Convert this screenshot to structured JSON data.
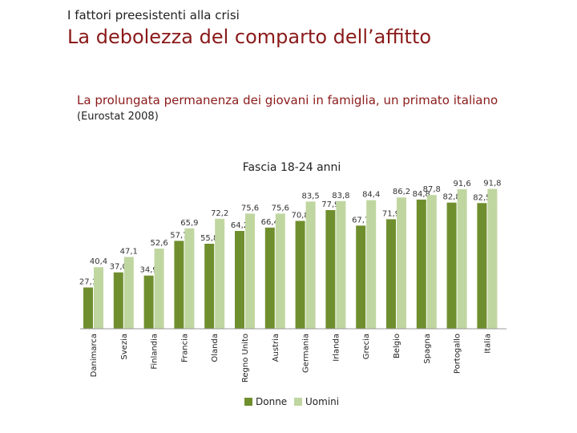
{
  "header": {
    "kicker": "I fattori preesistenti alla crisi",
    "title": "La debolezza del comparto dell’affitto",
    "subtitle": "La prolungata permanenza dei giovani in famiglia, un primato italiano",
    "source": "(Eurostat 2008)"
  },
  "chart_data": {
    "type": "bar",
    "title": "Fascia 18-24 anni",
    "categories": [
      "Danimarca",
      "Svezia",
      "Finlandia",
      "Francia",
      "Olanda",
      "Regno Unito",
      "Austria",
      "Germania",
      "Irlanda",
      "Grecia",
      "Belgio",
      "Spagna",
      "Portogallo",
      "Italia"
    ],
    "series": [
      {
        "name": "Donne",
        "color": "#6f8f2e",
        "values": [
          27.1,
          37.0,
          34.9,
          57.7,
          55.8,
          64.2,
          66.4,
          70.8,
          77.9,
          67.7,
          71.9,
          84.8,
          82.8,
          82.5
        ],
        "labels": [
          "27,1",
          "37,0",
          "34,9",
          "57,7",
          "55,8",
          "64,2",
          "66,4",
          "70,8",
          "77,9",
          "67,7",
          "71,9",
          "84,8",
          "82,8",
          "82,5"
        ]
      },
      {
        "name": "Uomini",
        "color": "#c0d6a0",
        "values": [
          40.4,
          47.1,
          52.6,
          65.9,
          72.2,
          75.6,
          75.6,
          83.5,
          83.8,
          84.4,
          86.2,
          87.8,
          91.6,
          91.8
        ],
        "labels": [
          "40,4",
          "47,1",
          "52,6",
          "65,9",
          "72,2",
          "75,6",
          "75,6",
          "83,5",
          "83,8",
          "84,4",
          "86,2",
          "87,8",
          "91,6",
          "91,8"
        ]
      }
    ],
    "ylim": [
      0,
      100
    ],
    "grid": false,
    "legend_position": "bottom"
  }
}
